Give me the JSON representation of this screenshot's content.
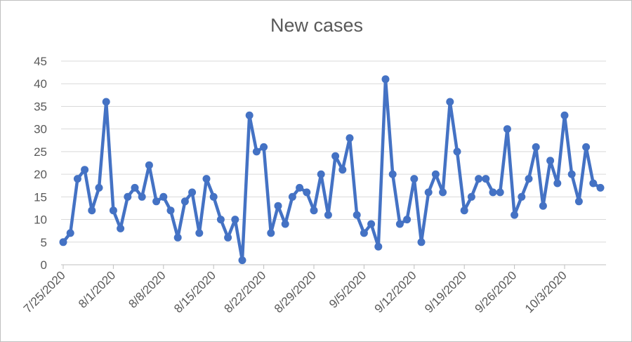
{
  "chart_data": {
    "type": "line",
    "title": "New cases",
    "xlabel": "",
    "ylabel": "",
    "ylim": [
      0,
      45
    ],
    "yticks": [
      0,
      5,
      10,
      15,
      20,
      25,
      30,
      35,
      40,
      45
    ],
    "xtick_labels": [
      "7/25/2020",
      "8/1/2020",
      "8/8/2020",
      "8/15/2020",
      "8/22/2020",
      "8/29/2020",
      "9/5/2020",
      "9/12/2020",
      "9/19/2020",
      "9/26/2020",
      "10/3/2020"
    ],
    "x_start": "7/25/2020",
    "x_end": "10/10/2020",
    "grid": true,
    "legend": "none",
    "colors": {
      "series": "#4472c4",
      "grid": "#d9d9d9",
      "text": "#595959"
    },
    "series": [
      {
        "name": "",
        "values": [
          5,
          7,
          19,
          21,
          12,
          17,
          36,
          12,
          8,
          15,
          17,
          15,
          22,
          14,
          15,
          12,
          6,
          14,
          16,
          7,
          19,
          15,
          10,
          6,
          10,
          1,
          33,
          25,
          26,
          7,
          13,
          9,
          15,
          17,
          16,
          12,
          20,
          11,
          24,
          21,
          28,
          11,
          7,
          9,
          4,
          41,
          20,
          9,
          10,
          19,
          5,
          16,
          20,
          16,
          36,
          25,
          12,
          15,
          19,
          19,
          16,
          16,
          30,
          11,
          15,
          19,
          26,
          13,
          23,
          18,
          33,
          20,
          14,
          26,
          18,
          17
        ]
      }
    ]
  }
}
